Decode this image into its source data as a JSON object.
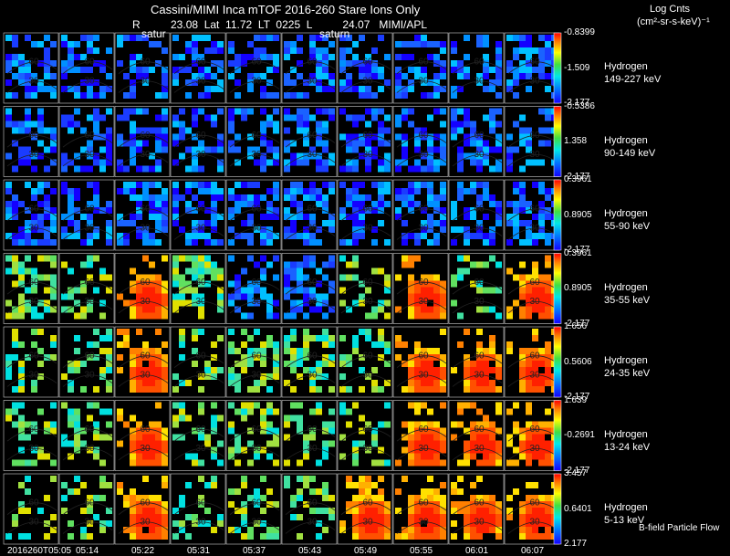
{
  "header": {
    "title": "Cassini/MIMI Inca mTOF  2016-260   Stare   Ions Only",
    "subtitle": "R          23.08  Lat  11.72  LT  0225  L          24.07   MIMI/APL",
    "units_line1": "Log Cnts",
    "units_line2": "(cm²-sr-s-keV)⁻¹",
    "frame_labels": [
      "satur",
      "saturn"
    ],
    "footer": "B-field Particle Flow"
  },
  "chart_data": {
    "type": "heatmap",
    "title": "Cassini/MIMI Inca mTOF  2016-260   Stare   Ions Only",
    "time_ticks": [
      "2016260T05:05",
      "05:14",
      "05:22",
      "05:31",
      "05:37",
      "05:43",
      "05:49",
      "05:55",
      "06:01",
      "06:07"
    ],
    "panel_contour_labels": [
      "60",
      "30"
    ],
    "rows": [
      {
        "species": "Hydrogen",
        "energy": "149-227 keV",
        "cb_max": "-0.8399",
        "cb_mid": "-1.509",
        "cb_min": "-2.177",
        "intensity": [
          0.22,
          0.24,
          0.26,
          0.24,
          0.26,
          0.3,
          0.28,
          0.32,
          0.3,
          0.3
        ],
        "colors": [
          "#1a4bff",
          "#1a55ff",
          "#1a62ff",
          "#1a55ff",
          "#1a62ff",
          "#1a7cff",
          "#1a6eff",
          "#1a88ff",
          "#1a7cff",
          "#1a7cff"
        ]
      },
      {
        "species": "Hydrogen",
        "energy": "90-149 keV",
        "cb_max": "-0.5386",
        "cb_mid": "1.358",
        "cb_min": "-2.177",
        "intensity": [
          0.2,
          0.22,
          0.24,
          0.22,
          0.22,
          0.24,
          0.24,
          0.26,
          0.26,
          0.26
        ],
        "colors": [
          "#1a40ff",
          "#1a4bff",
          "#1a55ff",
          "#1a4bff",
          "#1a4bff",
          "#1a55ff",
          "#1a55ff",
          "#1a62ff",
          "#1a62ff",
          "#1a62ff"
        ]
      },
      {
        "species": "Hydrogen",
        "energy": "55-90 keV",
        "cb_max": "0.3961",
        "cb_mid": "0.8905",
        "cb_min": "-2.177",
        "intensity": [
          0.18,
          0.2,
          0.24,
          0.22,
          0.18,
          0.22,
          0.24,
          0.26,
          0.28,
          0.28
        ],
        "colors": [
          "#1a38ff",
          "#1a40ff",
          "#1a55ff",
          "#1a4bff",
          "#1a38ff",
          "#1a4bff",
          "#1a55ff",
          "#1a62ff",
          "#1a6eff",
          "#1a6eff"
        ]
      },
      {
        "species": "Hydrogen",
        "energy": "35-55 keV",
        "cb_max": "0.3961",
        "cb_mid": "0.8905",
        "cb_min": "-2.177",
        "intensity": [
          0.4,
          0.42,
          0.78,
          0.4,
          0.38,
          0.38,
          0.45,
          0.72,
          0.68,
          0.74
        ],
        "colors": [
          "#40c8d0",
          "#46d0b8",
          "#ff7a00",
          "#40c8d0",
          "#38bfe0",
          "#38bfe0",
          "#5ad890",
          "#ffa200",
          "#ffc000",
          "#ff9400"
        ]
      },
      {
        "species": "Hydrogen",
        "energy": "24-35 keV",
        "cb_max": "1.656",
        "cb_mid": "0.5606",
        "cb_min": "-2.177",
        "intensity": [
          0.42,
          0.44,
          0.84,
          0.42,
          0.4,
          0.4,
          0.5,
          0.84,
          0.76,
          0.82
        ],
        "colors": [
          "#46d0b8",
          "#52d8a0",
          "#ff4800",
          "#46d0b8",
          "#40c8d0",
          "#40c8d0",
          "#8ae060",
          "#ff4800",
          "#ff8400",
          "#ff5800"
        ]
      },
      {
        "species": "Hydrogen",
        "energy": "13-24 keV",
        "cb_max": "1.639",
        "cb_mid": "-0.2691",
        "cb_min": "-2.177",
        "intensity": [
          0.46,
          0.48,
          0.88,
          0.44,
          0.44,
          0.42,
          0.66,
          0.88,
          0.9,
          0.88
        ],
        "colors": [
          "#70dc70",
          "#80e060",
          "#ff3000",
          "#60d888",
          "#60d888",
          "#52d8a0",
          "#ffd000",
          "#ff3000",
          "#ff2600",
          "#ff3000"
        ]
      },
      {
        "species": "Hydrogen",
        "energy": "5-13 keV",
        "cb_max": "3.457",
        "cb_mid": "0.6401",
        "cb_min": "2.177",
        "intensity": [
          0.62,
          0.6,
          0.86,
          0.5,
          0.52,
          0.5,
          0.72,
          0.84,
          0.82,
          0.84
        ],
        "colors": [
          "#e8e400",
          "#d8e000",
          "#ff3800",
          "#a8e050",
          "#b8e040",
          "#a8e050",
          "#ffaa00",
          "#ff4800",
          "#ff5800",
          "#ff4800"
        ]
      }
    ]
  }
}
